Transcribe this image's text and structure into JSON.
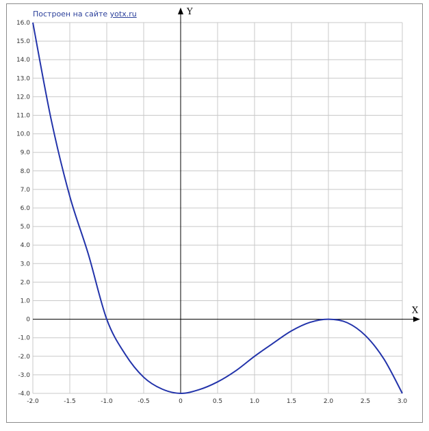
{
  "credit": {
    "prefix": "Построен на сайте",
    "link": "yotx.ru"
  },
  "colors": {
    "curve": "#2233aa",
    "grid": "#c8c8c8",
    "axis": "#000000"
  },
  "chart_data": {
    "type": "line",
    "title": "",
    "xlabel": "X",
    "ylabel": "Y",
    "xlim": [
      -2.0,
      3.0
    ],
    "ylim": [
      -4.0,
      16.0
    ],
    "xtick_step": 0.5,
    "ytick_step": 1.0,
    "x_ticks": [
      "-2.0",
      "-1.5",
      "-1.0",
      "-0.5",
      "0",
      "0.5",
      "1.0",
      "1.5",
      "2.0",
      "2.5",
      "3.0"
    ],
    "y_ticks": [
      "-4.0",
      "-3.0",
      "-2.0",
      "-1.0",
      "0",
      "1.0",
      "2.0",
      "3.0",
      "4.0",
      "5.0",
      "6.0",
      "7.0",
      "8.0",
      "9.0",
      "10.0",
      "11.0",
      "12.0",
      "13.0",
      "14.0",
      "15.0",
      "16.0"
    ],
    "grid": true,
    "series": [
      {
        "x": [
          -2.0,
          -1.75,
          -1.5,
          -1.25,
          -1.0,
          -0.75,
          -0.5,
          -0.25,
          0.0,
          0.25,
          0.5,
          0.75,
          1.0,
          1.25,
          1.5,
          1.75,
          2.0,
          2.25,
          2.5,
          2.75,
          3.0
        ],
        "y": [
          16.0,
          10.73,
          6.63,
          3.52,
          0.0,
          -1.89,
          -3.13,
          -3.77,
          -4.0,
          -3.8,
          -3.38,
          -2.77,
          -2.0,
          -1.3,
          -0.63,
          -0.17,
          0.0,
          -0.18,
          -0.88,
          -2.14,
          -4.0
        ]
      }
    ]
  }
}
